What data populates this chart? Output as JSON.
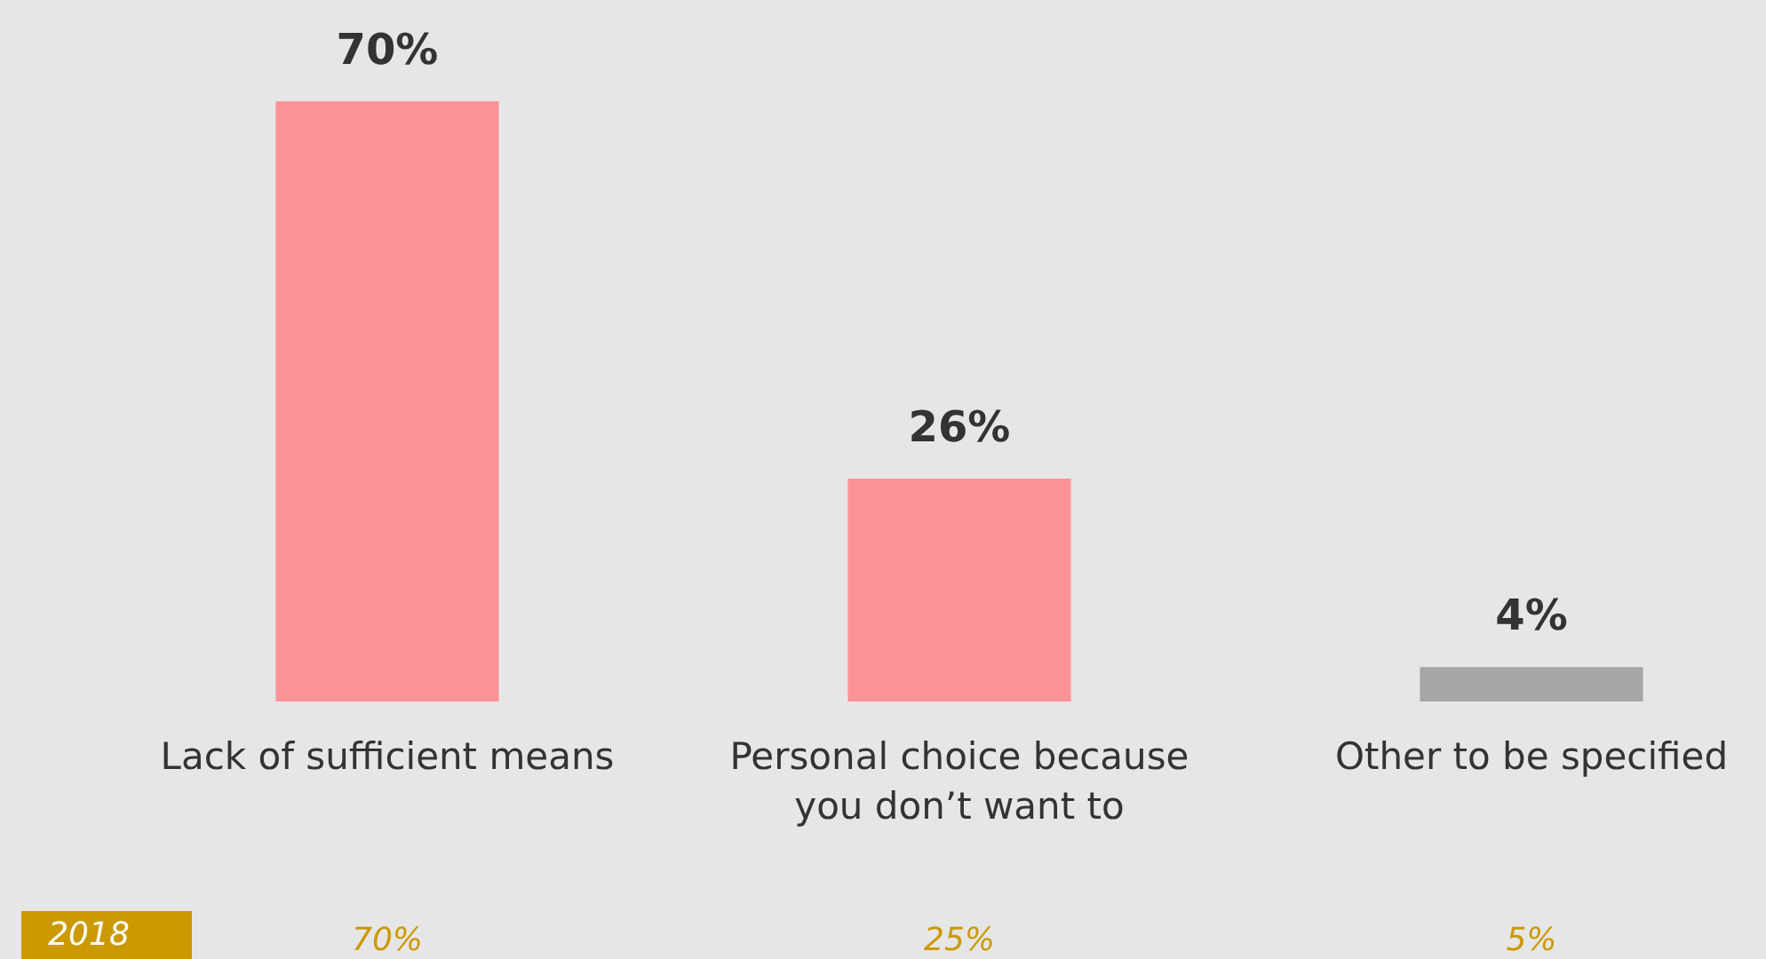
{
  "chart_data": {
    "type": "bar",
    "categories": [
      "Lack of sufficient means",
      "Personal choice because you don’t want to",
      "Other to be specified"
    ],
    "values": [
      70,
      26,
      4
    ],
    "colors": [
      "#fc9399",
      "#fc9399",
      "#a6a6a6"
    ],
    "value_labels": [
      "70%",
      "26%",
      "4%"
    ],
    "grid": false,
    "annotations": [
      "2018",
      "70%",
      "25%",
      "5%"
    ]
  }
}
